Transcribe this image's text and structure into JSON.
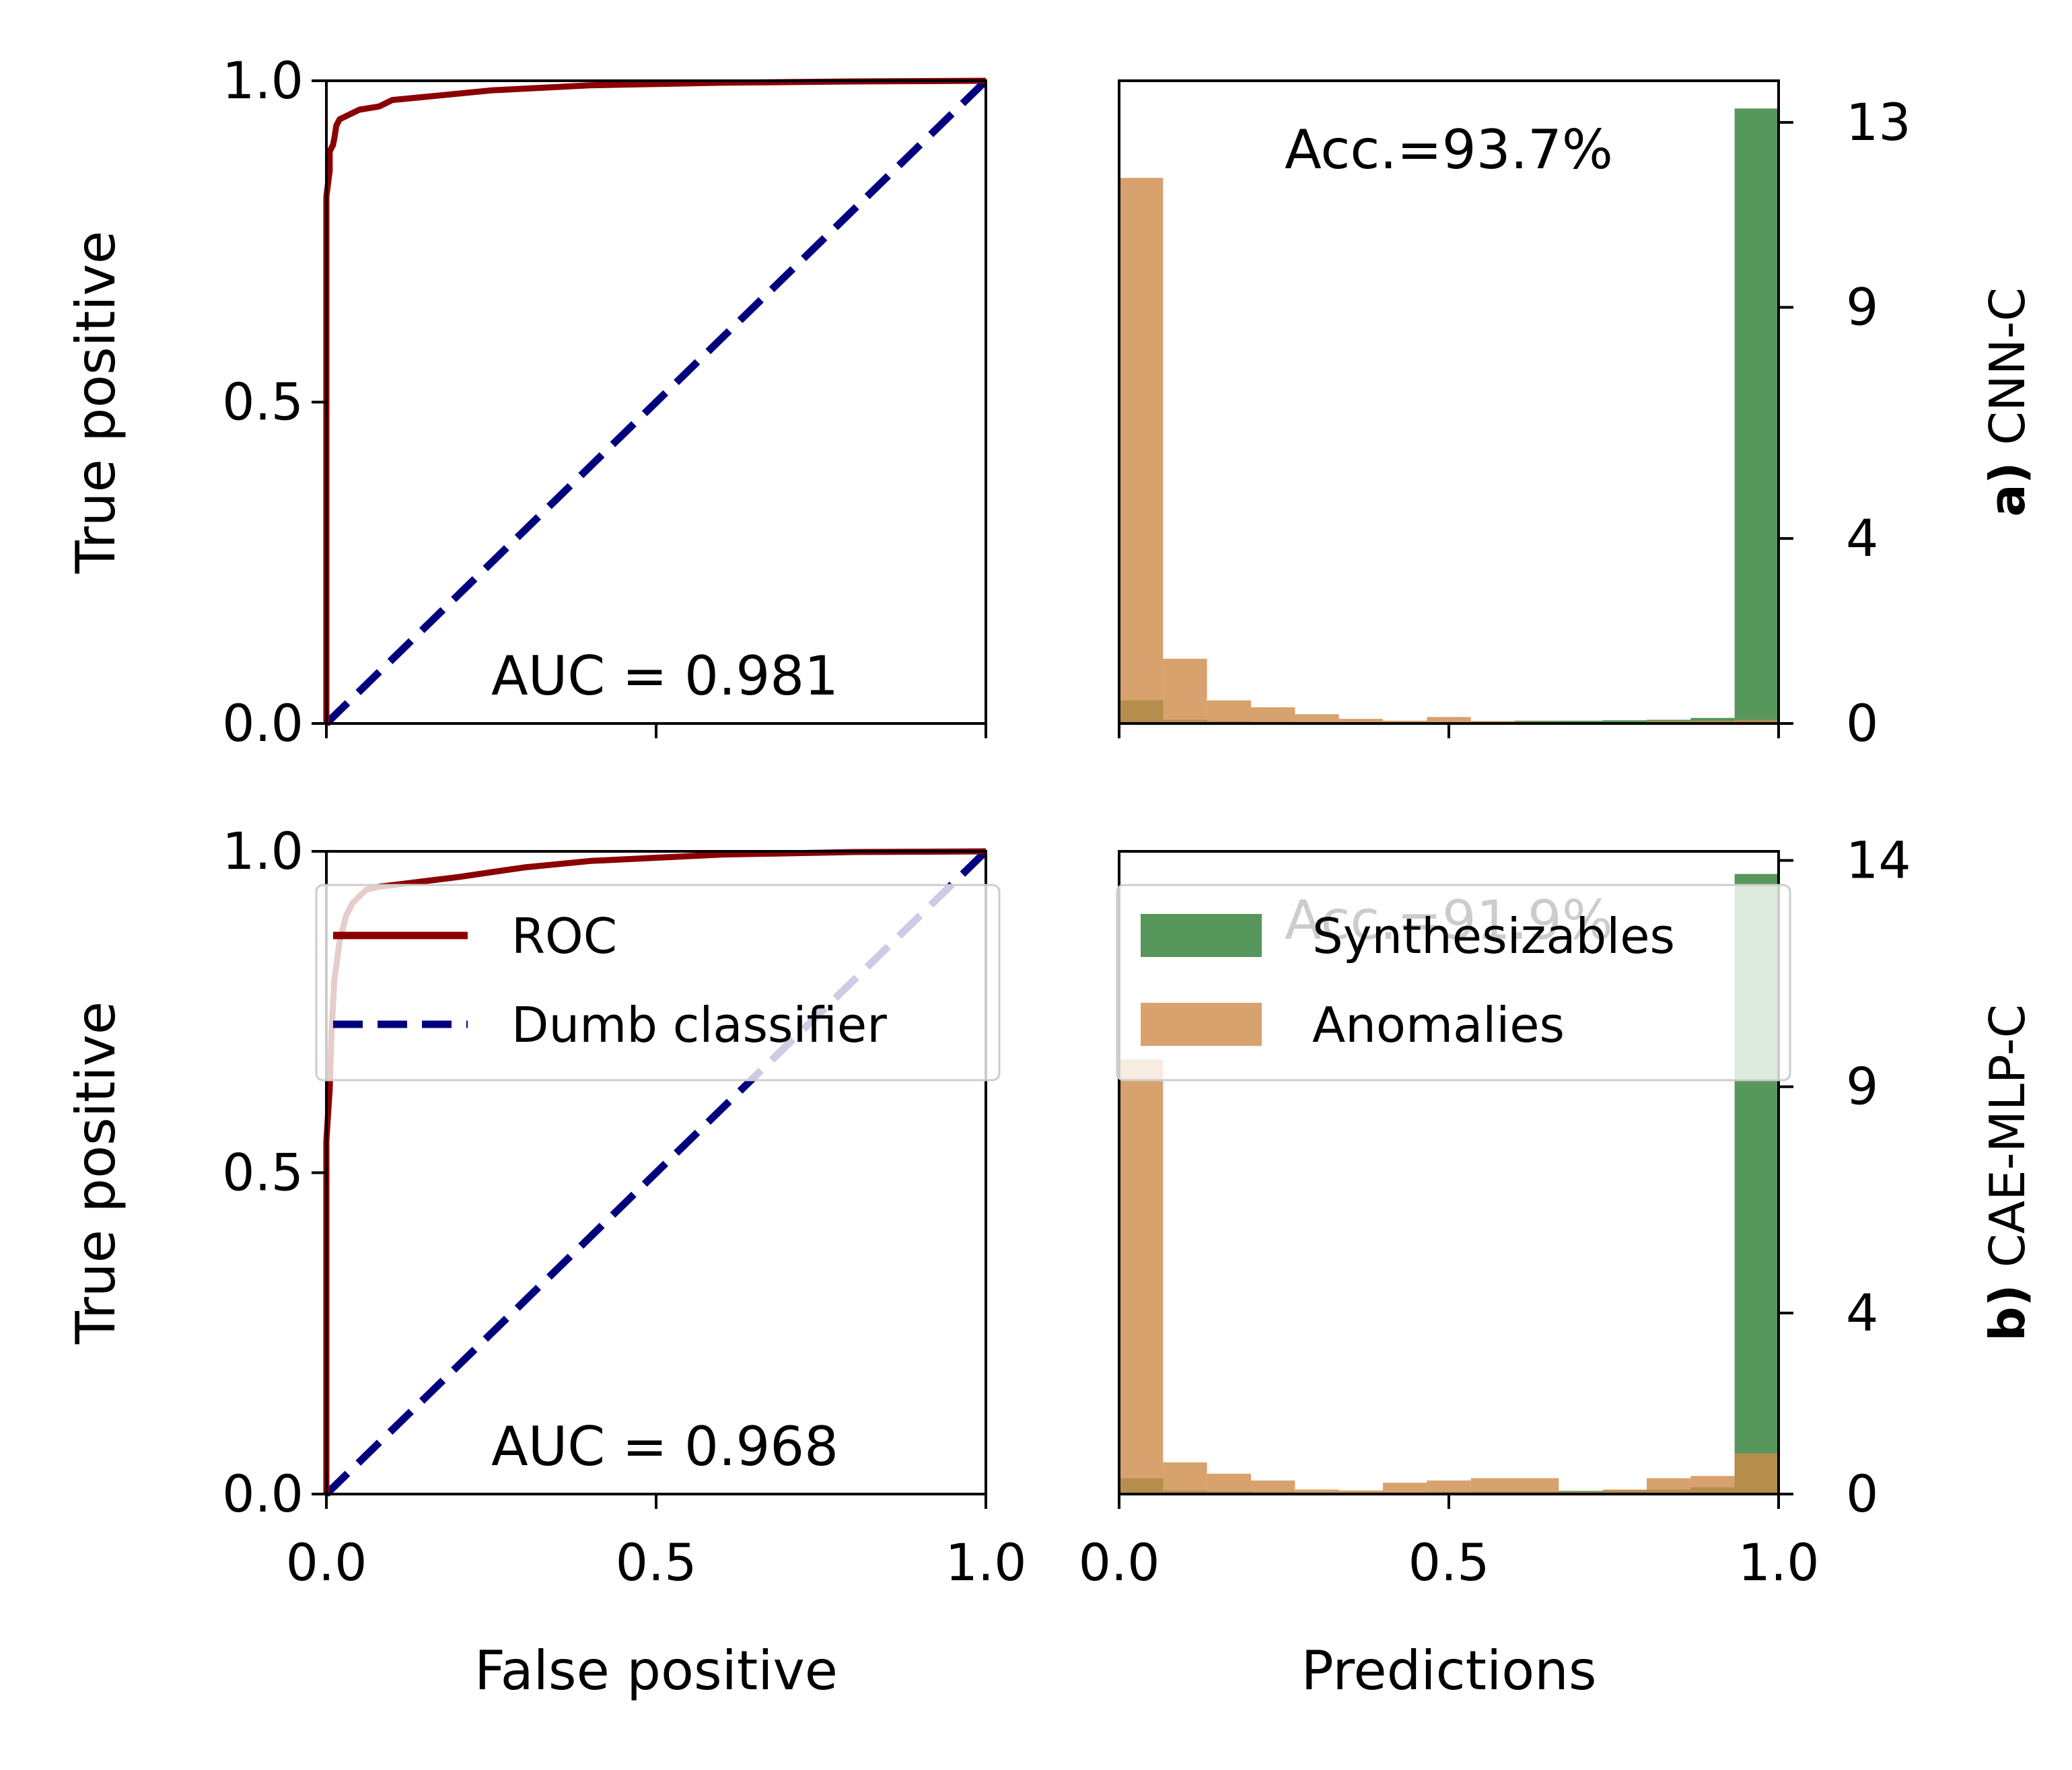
{
  "chart_data": [
    {
      "type": "line",
      "panel": "a-roc",
      "xlabel": "",
      "ylabel": "True positive",
      "xlim": [
        0,
        1
      ],
      "ylim": [
        0,
        1
      ],
      "xticks": [
        "",
        "",
        ""
      ],
      "yticks": [
        "0.0",
        "0.5",
        "1.0"
      ],
      "annotation": "AUC = 0.981",
      "series": [
        {
          "name": "ROC",
          "color": "#8b0000",
          "x": [
            0,
            0.0,
            0.005,
            0.005,
            0.01,
            0.012,
            0.015,
            0.02,
            0.03,
            0.05,
            0.08,
            0.1,
            0.15,
            0.25,
            0.4,
            0.6,
            0.8,
            1.0
          ],
          "y": [
            0,
            0.82,
            0.86,
            0.89,
            0.9,
            0.91,
            0.93,
            0.94,
            0.945,
            0.955,
            0.96,
            0.97,
            0.975,
            0.985,
            0.993,
            0.997,
            0.999,
            1.0
          ]
        },
        {
          "name": "Dumb classifier",
          "color": "#00007f",
          "dashed": true,
          "x": [
            0,
            1
          ],
          "y": [
            0,
            1
          ]
        }
      ]
    },
    {
      "type": "bar",
      "panel": "a-hist",
      "xlabel": "",
      "ylabel": "",
      "xlim": [
        0,
        1
      ],
      "ylim": [
        0,
        13.9
      ],
      "xticks": [
        "",
        "",
        ""
      ],
      "yticks": [
        "0",
        "4",
        "9",
        "13"
      ],
      "ytick_values": [
        0,
        4,
        9,
        13
      ],
      "annotation": "Acc.=93.7%",
      "row_label_bold": "a)",
      "row_label": "CNN-C",
      "bin_edges": [
        0,
        0.0667,
        0.1333,
        0.2,
        0.2667,
        0.3333,
        0.4,
        0.4667,
        0.5333,
        0.6,
        0.6667,
        0.7333,
        0.8,
        0.8667,
        0.9333,
        1.0
      ],
      "series": [
        {
          "name": "Synthesizables",
          "color": "#2e7d32",
          "values": [
            0.5,
            0.08,
            0.05,
            0.04,
            0.03,
            0.02,
            0.02,
            0.03,
            0.05,
            0.06,
            0.06,
            0.07,
            0.08,
            0.12,
            13.3
          ]
        },
        {
          "name": "Anomalies",
          "color": "#cd8b49",
          "values": [
            11.8,
            1.4,
            0.5,
            0.35,
            0.2,
            0.1,
            0.06,
            0.14,
            0.05,
            0.04,
            0.03,
            0.03,
            0.05,
            0.06,
            0.08
          ]
        }
      ]
    },
    {
      "type": "line",
      "panel": "b-roc",
      "xlabel": "False positive",
      "ylabel": "True positive",
      "xlim": [
        0,
        1
      ],
      "ylim": [
        0,
        1
      ],
      "xticks": [
        "0.0",
        "0.5",
        "1.0"
      ],
      "yticks": [
        "0.0",
        "0.5",
        "1.0"
      ],
      "annotation": "AUC = 0.968",
      "series": [
        {
          "name": "ROC",
          "color": "#8b0000",
          "x": [
            0,
            0.0,
            0.005,
            0.008,
            0.012,
            0.02,
            0.03,
            0.04,
            0.06,
            0.08,
            0.12,
            0.2,
            0.3,
            0.4,
            0.5,
            0.6,
            0.8,
            1.0
          ],
          "y": [
            0,
            0.55,
            0.63,
            0.72,
            0.8,
            0.86,
            0.9,
            0.92,
            0.94,
            0.945,
            0.95,
            0.96,
            0.975,
            0.985,
            0.99,
            0.995,
            0.999,
            1.0
          ]
        },
        {
          "name": "Dumb classifier",
          "color": "#00007f",
          "dashed": true,
          "x": [
            0,
            1
          ],
          "y": [
            0,
            1
          ]
        }
      ]
    },
    {
      "type": "bar",
      "panel": "b-hist",
      "xlabel": "Predictions",
      "ylabel": "",
      "xlim": [
        0,
        1
      ],
      "ylim": [
        0,
        14.2
      ],
      "xticks": [
        "0.0",
        "0.5",
        "1.0"
      ],
      "yticks": [
        "0",
        "4",
        "9",
        "14"
      ],
      "ytick_values": [
        0,
        4,
        9,
        14
      ],
      "annotation": "Acc.=91.9%",
      "row_label_bold": "b)",
      "row_label": "CAE-MLP-C",
      "bin_edges": [
        0,
        0.0667,
        0.1333,
        0.2,
        0.2667,
        0.3333,
        0.4,
        0.4667,
        0.5333,
        0.6,
        0.6667,
        0.7333,
        0.8,
        0.8667,
        0.9333,
        1.0
      ],
      "series": [
        {
          "name": "Synthesizables",
          "color": "#2e7d32",
          "values": [
            0.35,
            0.08,
            0.06,
            0.05,
            0.04,
            0.04,
            0.04,
            0.05,
            0.06,
            0.06,
            0.07,
            0.08,
            0.1,
            0.15,
            13.7
          ]
        },
        {
          "name": "Anomalies",
          "color": "#cd8b49",
          "values": [
            9.6,
            0.7,
            0.45,
            0.3,
            0.1,
            0.08,
            0.25,
            0.3,
            0.35,
            0.35,
            0.05,
            0.1,
            0.35,
            0.4,
            0.9
          ]
        }
      ]
    }
  ],
  "legends": {
    "roc": [
      "ROC",
      "Dumb classifier"
    ],
    "hist": [
      "Synthesizables",
      "Anomalies"
    ]
  }
}
